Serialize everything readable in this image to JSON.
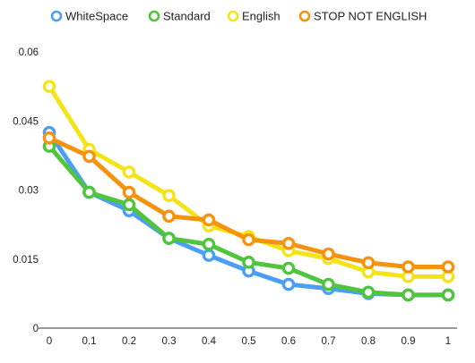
{
  "chart_data": {
    "type": "line",
    "title": "",
    "xlabel": "",
    "ylabel": "",
    "x": [
      0,
      0.1,
      0.2,
      0.3,
      0.4,
      0.5,
      0.6,
      0.7,
      0.8,
      0.9,
      1
    ],
    "x_tick_labels": [
      "0",
      "0.1",
      "0.2",
      "0.3",
      "0.4",
      "0.5",
      "0.6",
      "0.7",
      "0.8",
      "0.9",
      "1"
    ],
    "y_ticks": [
      0,
      0.015,
      0.03,
      0.045,
      0.06
    ],
    "y_tick_labels": [
      "0",
      "0.015",
      "0.03",
      "0.045",
      "0.06"
    ],
    "ylim": [
      0,
      0.06
    ],
    "grid": false,
    "legend_position": "top",
    "series": [
      {
        "name": "WhiteSpace",
        "color": "#4a9ff5",
        "values": [
          0.0425,
          0.0295,
          0.0255,
          0.0195,
          0.0158,
          0.0124,
          0.0095,
          0.0086,
          0.0075,
          0.0072,
          0.0072
        ]
      },
      {
        "name": "Standard",
        "color": "#4fc43c",
        "values": [
          0.0395,
          0.0295,
          0.0268,
          0.0195,
          0.0182,
          0.0143,
          0.013,
          0.0095,
          0.0078,
          0.0072,
          0.0072
        ]
      },
      {
        "name": "English",
        "color": "#f5e31a",
        "values": [
          0.0525,
          0.0388,
          0.0339,
          0.0288,
          0.0222,
          0.0199,
          0.0168,
          0.0151,
          0.0122,
          0.0112,
          0.0112
        ]
      },
      {
        "name": "STOP NOT ENGLISH",
        "color": "#f5930f",
        "values": [
          0.0413,
          0.0373,
          0.0295,
          0.0243,
          0.0235,
          0.0192,
          0.0184,
          0.0161,
          0.0142,
          0.0133,
          0.0133
        ]
      }
    ]
  }
}
